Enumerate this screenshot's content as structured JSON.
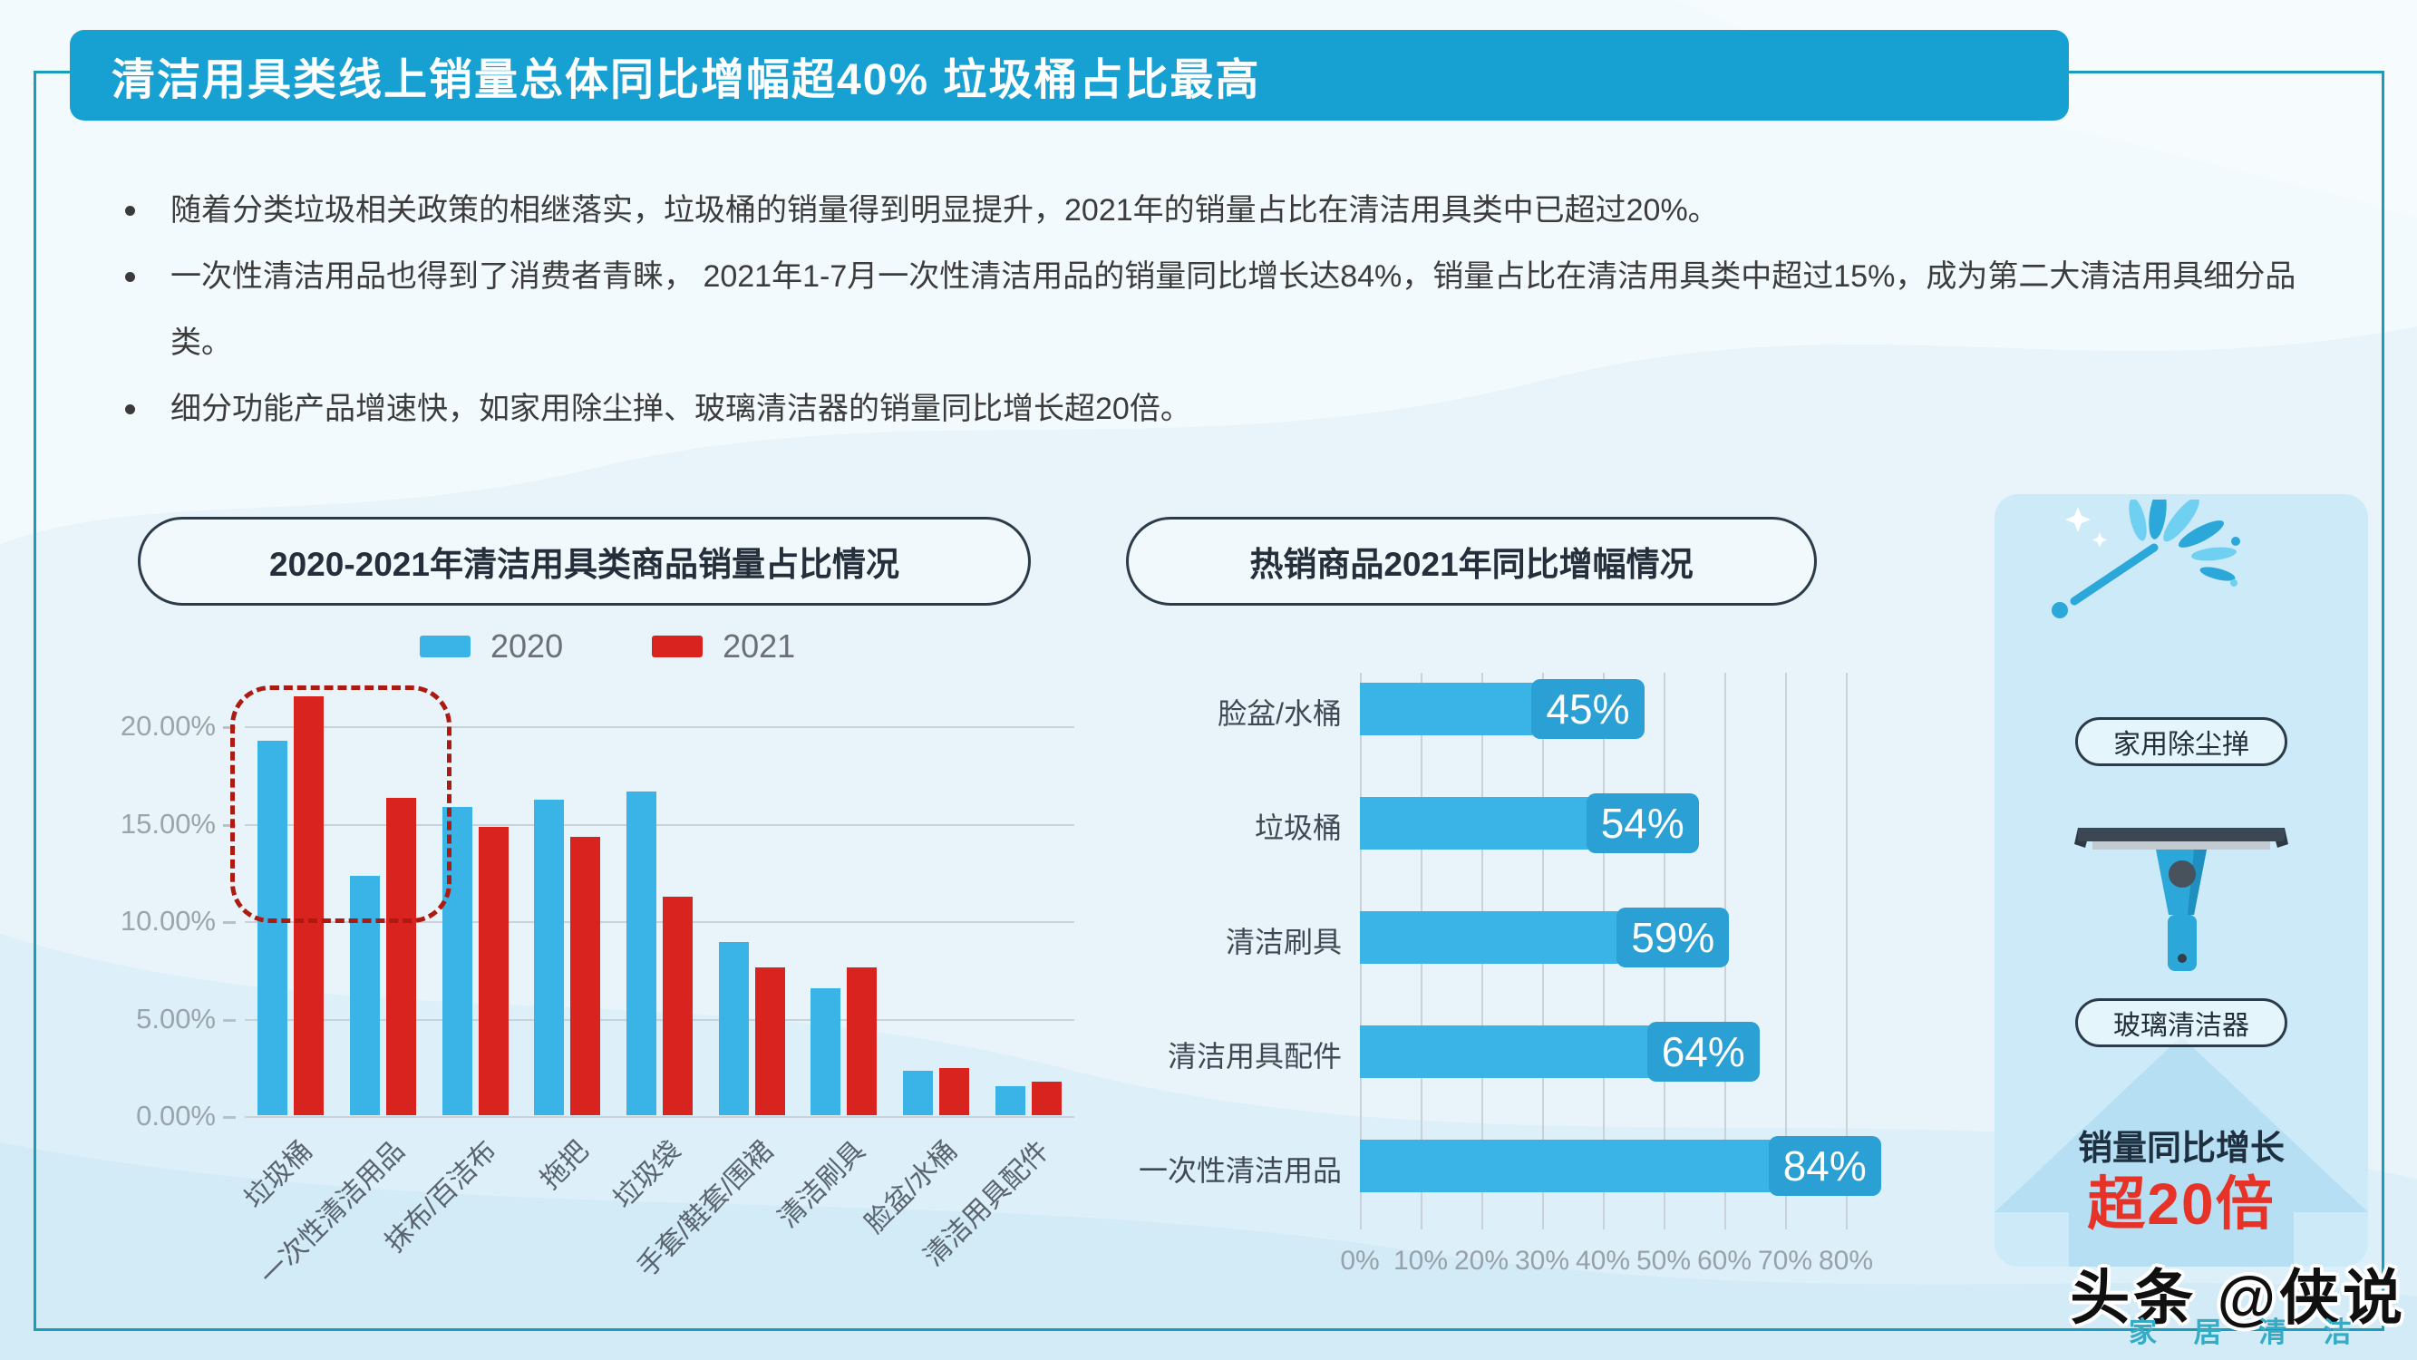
{
  "page": {
    "title": "清洁用具类线上销量总体同比增幅超40% 垃圾桶占比最高",
    "bullets": [
      "随着分类垃圾相关政策的相继落实，垃圾桶的销量得到明显提升，2021年的销量占比在清洁用具类中已超过20%。",
      "一次性清洁用品也得到了消费者青睐， 2021年1-7月一次性清洁用品的销量同比增长达84%，销量占比在清洁用具类中超过15%，成为第二大清洁用具细分品类。",
      "细分功能产品增速快，如家用除尘掸、玻璃清洁器的销量同比增长超20倍。"
    ]
  },
  "chart_data": [
    {
      "type": "bar",
      "title": "2020-2021年清洁用具类商品销量占比情况",
      "categories": [
        "垃圾桶",
        "一次性清洁用品",
        "抹布/百洁布",
        "拖把",
        "垃圾袋",
        "手套/鞋套/围裙",
        "清洁刷具",
        "脸盆/水桶",
        "清洁用具配件"
      ],
      "series": [
        {
          "name": "2020",
          "color": "#3ab4e6",
          "values": [
            19.2,
            12.3,
            15.8,
            16.2,
            16.6,
            8.9,
            6.5,
            2.3,
            1.5
          ]
        },
        {
          "name": "2021",
          "color": "#d8231e",
          "values": [
            21.5,
            16.3,
            14.8,
            14.3,
            11.2,
            7.6,
            7.6,
            2.4,
            1.7
          ]
        }
      ],
      "ylim": [
        0,
        20
      ],
      "yticks": [
        {
          "v": 0,
          "label": "0.00%"
        },
        {
          "v": 5,
          "label": "5.00%"
        },
        {
          "v": 10,
          "label": "10.00%"
        },
        {
          "v": 15,
          "label": "15.00%"
        },
        {
          "v": 20,
          "label": "20.00%"
        }
      ],
      "grid": true,
      "legend_position": "top",
      "highlight": {
        "categories": [
          "垃圾桶",
          "一次性清洁用品"
        ],
        "style": "red-dashed-rounded-box"
      }
    },
    {
      "type": "bar",
      "orientation": "horizontal",
      "title": "热销商品2021年同比增幅情况",
      "categories": [
        "脸盆/水桶",
        "垃圾桶",
        "清洁刷具",
        "清洁用具配件",
        "一次性清洁用品"
      ],
      "values": [
        45,
        54,
        59,
        64,
        84
      ],
      "data_labels": [
        "45%",
        "54%",
        "59%",
        "64%",
        "84%"
      ],
      "xlim": [
        0,
        80
      ],
      "xticks": [
        "0%",
        "10%",
        "20%",
        "30%",
        "40%",
        "50%",
        "60%",
        "70%",
        "80%"
      ],
      "grid": true
    }
  ],
  "panel": {
    "item1_label": "家用除尘掸",
    "item2_label": "玻璃清洁器",
    "growth_caption": "销量同比增长",
    "growth_value": "超20倍"
  },
  "watermark": {
    "main": "头条 @侠说",
    "sub": "家 居 清 洁"
  },
  "colors": {
    "title_bar_blue": "#17a0d2",
    "frame_teal": "#1a9db8",
    "bar_blue_2020": "#3ab4e6",
    "bar_red_2021": "#d8231e",
    "badge_blue": "#2aa0d4",
    "highlight_dash_red": "#ad1a10",
    "growth_red": "#e73228",
    "panel_bg": "#cdeaf9",
    "watermark_teal": "#36abc6"
  }
}
